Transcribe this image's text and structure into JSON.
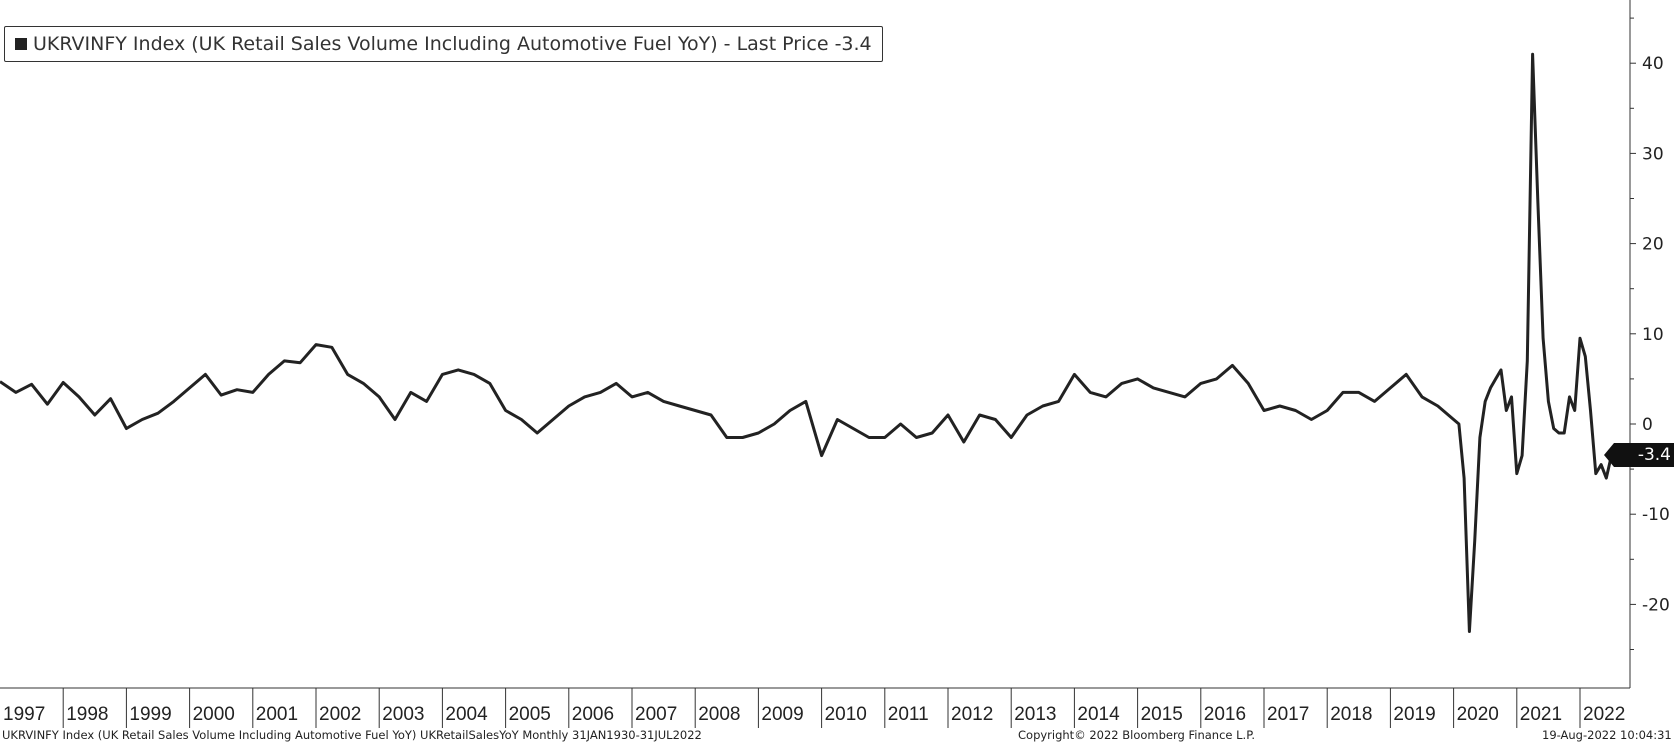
{
  "legend": {
    "text": "UKRVINFY Index (UK Retail Sales Volume Including Automotive Fuel YoY) - Last Price -3.4",
    "swatch_color": "#222222"
  },
  "footer": {
    "left": "UKRVINFY Index (UK Retail Sales Volume Including Automotive Fuel YoY) UKRetailSalesYoY  Monthly 31JAN1930-31JUL2022",
    "center": "Copyright© 2022 Bloomberg Finance L.P.",
    "right": "19-Aug-2022 10:04:31"
  },
  "last_value_label": "-3.4",
  "chart_data": {
    "type": "line",
    "title": "",
    "xlabel": "",
    "ylabel": "",
    "x_tick_labels": [
      "1997",
      "1998",
      "1999",
      "2000",
      "2001",
      "2002",
      "2003",
      "2004",
      "2005",
      "2006",
      "2007",
      "2008",
      "2009",
      "2010",
      "2011",
      "2012",
      "2013",
      "2014",
      "2015",
      "2016",
      "2017",
      "2018",
      "2019",
      "2020",
      "2021",
      "2022"
    ],
    "y_ticks": [
      40,
      30,
      20,
      10,
      0,
      -10,
      -20
    ],
    "y_tick_labels": [
      "40",
      "30",
      "20",
      "10",
      "0",
      "-10",
      "-20"
    ],
    "xlim": [
      "1997-01",
      "2022-07"
    ],
    "ylim": [
      -29,
      47
    ],
    "grid": false,
    "line_color": "#222222",
    "series": [
      {
        "name": "UKRVINFY Index",
        "points": [
          [
            "1997-01",
            4.7
          ],
          [
            "1997-04",
            3.5
          ],
          [
            "1997-07",
            4.4
          ],
          [
            "1997-10",
            2.2
          ],
          [
            "1998-01",
            4.6
          ],
          [
            "1998-04",
            3.0
          ],
          [
            "1998-07",
            1.0
          ],
          [
            "1998-10",
            2.8
          ],
          [
            "1999-01",
            -0.5
          ],
          [
            "1999-04",
            0.5
          ],
          [
            "1999-07",
            1.2
          ],
          [
            "1999-10",
            2.5
          ],
          [
            "2000-01",
            4.0
          ],
          [
            "2000-04",
            5.5
          ],
          [
            "2000-07",
            3.2
          ],
          [
            "2000-10",
            3.8
          ],
          [
            "2001-01",
            3.5
          ],
          [
            "2001-04",
            5.5
          ],
          [
            "2001-07",
            7.0
          ],
          [
            "2001-10",
            6.8
          ],
          [
            "2002-01",
            8.8
          ],
          [
            "2002-04",
            8.5
          ],
          [
            "2002-07",
            5.5
          ],
          [
            "2002-10",
            4.5
          ],
          [
            "2003-01",
            3.0
          ],
          [
            "2003-04",
            0.5
          ],
          [
            "2003-07",
            3.5
          ],
          [
            "2003-10",
            2.5
          ],
          [
            "2004-01",
            5.5
          ],
          [
            "2004-04",
            6.0
          ],
          [
            "2004-07",
            5.5
          ],
          [
            "2004-10",
            4.5
          ],
          [
            "2005-01",
            1.5
          ],
          [
            "2005-04",
            0.5
          ],
          [
            "2005-07",
            -1.0
          ],
          [
            "2005-10",
            0.5
          ],
          [
            "2006-01",
            2.0
          ],
          [
            "2006-04",
            3.0
          ],
          [
            "2006-07",
            3.5
          ],
          [
            "2006-10",
            4.5
          ],
          [
            "2007-01",
            3.0
          ],
          [
            "2007-04",
            3.5
          ],
          [
            "2007-07",
            2.5
          ],
          [
            "2007-10",
            2.0
          ],
          [
            "2008-01",
            1.5
          ],
          [
            "2008-04",
            1.0
          ],
          [
            "2008-07",
            -1.5
          ],
          [
            "2008-10",
            -1.5
          ],
          [
            "2009-01",
            -1.0
          ],
          [
            "2009-04",
            0.0
          ],
          [
            "2009-07",
            1.5
          ],
          [
            "2009-10",
            2.5
          ],
          [
            "2010-01",
            -3.5
          ],
          [
            "2010-04",
            0.5
          ],
          [
            "2010-07",
            -0.5
          ],
          [
            "2010-10",
            -1.5
          ],
          [
            "2011-01",
            -1.5
          ],
          [
            "2011-04",
            0.0
          ],
          [
            "2011-07",
            -1.5
          ],
          [
            "2011-10",
            -1.0
          ],
          [
            "2012-01",
            1.0
          ],
          [
            "2012-04",
            -2.0
          ],
          [
            "2012-07",
            1.0
          ],
          [
            "2012-10",
            0.5
          ],
          [
            "2013-01",
            -1.5
          ],
          [
            "2013-04",
            1.0
          ],
          [
            "2013-07",
            2.0
          ],
          [
            "2013-10",
            2.5
          ],
          [
            "2014-01",
            5.5
          ],
          [
            "2014-04",
            3.5
          ],
          [
            "2014-07",
            3.0
          ],
          [
            "2014-10",
            4.5
          ],
          [
            "2015-01",
            5.0
          ],
          [
            "2015-04",
            4.0
          ],
          [
            "2015-07",
            3.5
          ],
          [
            "2015-10",
            3.0
          ],
          [
            "2016-01",
            4.5
          ],
          [
            "2016-04",
            5.0
          ],
          [
            "2016-07",
            6.5
          ],
          [
            "2016-10",
            4.5
          ],
          [
            "2017-01",
            1.5
          ],
          [
            "2017-04",
            2.0
          ],
          [
            "2017-07",
            1.5
          ],
          [
            "2017-10",
            0.5
          ],
          [
            "2018-01",
            1.5
          ],
          [
            "2018-04",
            3.5
          ],
          [
            "2018-07",
            3.5
          ],
          [
            "2018-10",
            2.5
          ],
          [
            "2019-01",
            4.0
          ],
          [
            "2019-04",
            5.5
          ],
          [
            "2019-07",
            3.0
          ],
          [
            "2019-10",
            2.0
          ],
          [
            "2020-01",
            0.5
          ],
          [
            "2020-02",
            0.0
          ],
          [
            "2020-03",
            -6.0
          ],
          [
            "2020-04",
            -23.0
          ],
          [
            "2020-05",
            -13.0
          ],
          [
            "2020-06",
            -1.5
          ],
          [
            "2020-07",
            2.5
          ],
          [
            "2020-08",
            4.0
          ],
          [
            "2020-09",
            5.0
          ],
          [
            "2020-10",
            6.0
          ],
          [
            "2020-11",
            1.5
          ],
          [
            "2020-12",
            3.0
          ],
          [
            "2021-01",
            -5.5
          ],
          [
            "2021-02",
            -3.5
          ],
          [
            "2021-03",
            7.0
          ],
          [
            "2021-04",
            41.0
          ],
          [
            "2021-05",
            24.5
          ],
          [
            "2021-06",
            9.5
          ],
          [
            "2021-07",
            2.5
          ],
          [
            "2021-08",
            -0.5
          ],
          [
            "2021-09",
            -1.0
          ],
          [
            "2021-10",
            -1.0
          ],
          [
            "2021-11",
            3.0
          ],
          [
            "2021-12",
            1.5
          ],
          [
            "2022-01",
            9.5
          ],
          [
            "2022-02",
            7.5
          ],
          [
            "2022-03",
            1.5
          ],
          [
            "2022-04",
            -5.5
          ],
          [
            "2022-05",
            -4.5
          ],
          [
            "2022-06",
            -6.0
          ],
          [
            "2022-07",
            -3.4
          ]
        ]
      }
    ]
  }
}
